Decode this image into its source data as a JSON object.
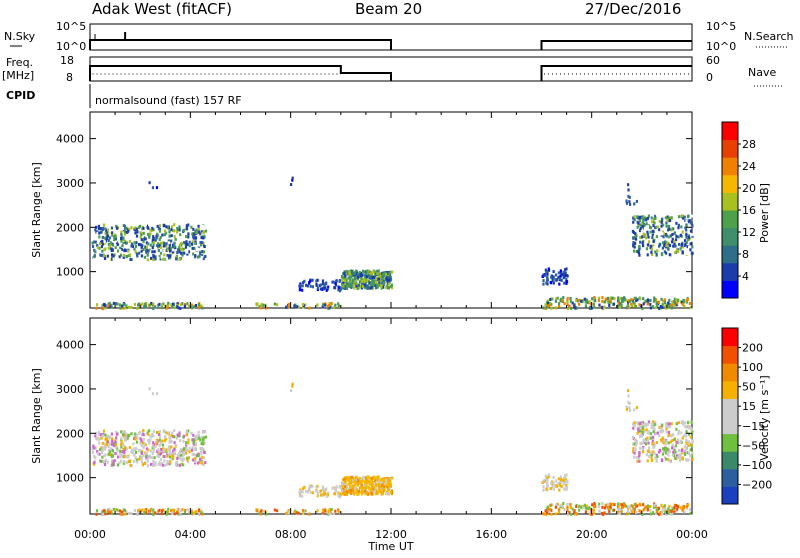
{
  "header": {
    "station": "Adak West (fitACF)",
    "beam": "Beam 20",
    "date": "27/Dec/2016"
  },
  "top_labels": {
    "nsky": "N.Sky",
    "freq_line1": "Freq.",
    "freq_line2": "[MHz]",
    "cpid": "CPID",
    "nsearch": "N.Search",
    "nave": "Nave",
    "cpid_text": "normalsound (fast) 157 RF",
    "nsky_ticks": [
      "10^5",
      "10^0"
    ],
    "nsearch_ticks": [
      "10^5",
      "10^0"
    ],
    "freq_ticks": [
      "18",
      "8"
    ],
    "nave_ticks": [
      "60",
      "0"
    ]
  },
  "colors": {
    "power_scale": [
      "#0000ff",
      "#1c3caa",
      "#2e6e88",
      "#3f8f6a",
      "#4fa04a",
      "#a8c020",
      "#f5b800",
      "#f08000",
      "#e84000",
      "#ff0000"
    ],
    "velocity_scale": [
      "#ff0000",
      "#f05000",
      "#f08a00",
      "#f5b000",
      "#cccccc",
      "#cccccc",
      "#70c040",
      "#3a8a6a",
      "#2d5fa0",
      "#1a40c0"
    ]
  },
  "chart_data": [
    {
      "type": "heatmap",
      "name": "power",
      "ylabel": "Slant Range [km]",
      "x_range_hours": [
        0,
        24
      ],
      "ylim_km": [
        180,
        4600
      ],
      "yticks": [
        1000,
        2000,
        3000,
        4000
      ],
      "colorbar": {
        "label": "Power [dB]",
        "ticks": [
          "28",
          "24",
          "20",
          "16",
          "12",
          "8",
          "4"
        ],
        "range": [
          0,
          30
        ]
      }
    },
    {
      "type": "heatmap",
      "name": "velocity",
      "ylabel": "Slant Range [km]",
      "xlabel": "Time UT",
      "x_range_hours": [
        0,
        24
      ],
      "ylim_km": [
        180,
        4600
      ],
      "yticks": [
        1000,
        2000,
        3000,
        4000
      ],
      "xticks": [
        "00:00",
        "04:00",
        "08:00",
        "12:00",
        "16:00",
        "20:00",
        "00:00"
      ],
      "colorbar": {
        "label": "Velocity [m s⁻¹]",
        "ticks": [
          "200",
          "100",
          "50",
          "15",
          "−15",
          "−50",
          "−100",
          "−200"
        ]
      }
    }
  ]
}
